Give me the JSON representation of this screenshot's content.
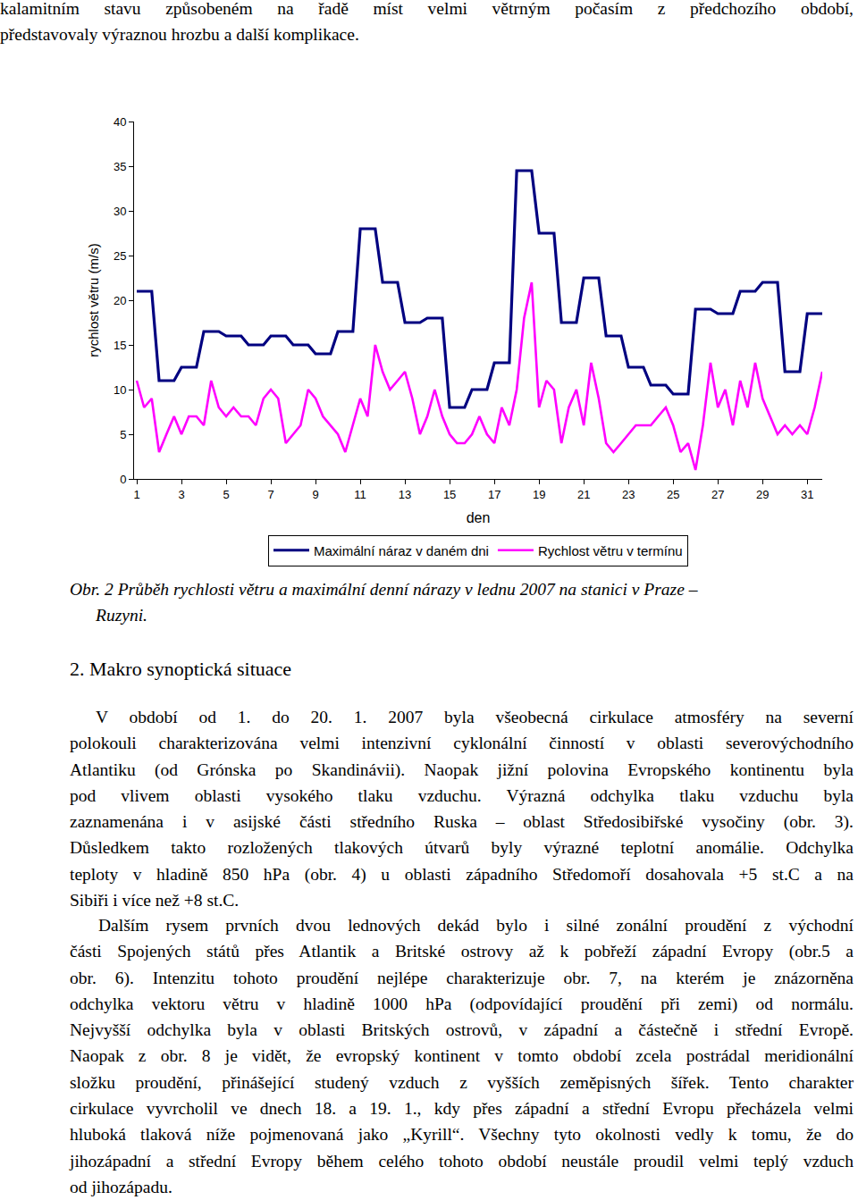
{
  "document": {
    "top_text": [
      "kalamitním stavu způsobeném na řadě míst velmi větrným počasím z předchozího období,",
      "představovaly výraznou hrozbu a další komplikace."
    ],
    "caption": [
      "Obr. 2 Průběh rychlosti větru a maximální denní nárazy v lednu 2007 na stanici v Praze –",
      "Ruzyni."
    ],
    "heading": "2. Makro synoptická situace",
    "paragraphs": [
      [
        "V období od 1. do 20. 1. 2007 byla všeobecná cirkulace atmosféry na severní",
        "polokouli charakterizována velmi intenzivní cyklonální činností v oblasti severovýchodního",
        "Atlantiku (od Grónska po Skandinávii). Naopak jižní polovina Evropského kontinentu byla",
        "pod vlivem oblasti vysokého tlaku vzduchu. Výrazná odchylka tlaku vzduchu byla",
        "zaznamenána i v asijské části středního Ruska – oblast Středosibiřské vysočiny (obr. 3).",
        "Důsledkem takto rozložených tlakových útvarů byly výrazné teplotní anomálie. Odchylka",
        "teploty v hladině 850 hPa (obr. 4) u oblasti západního Středomoří dosahovala +5 st.C a na",
        "Sibiři i více než +8 st.C."
      ],
      [
        "Dalším rysem prvních dvou lednových dekád bylo i silné zonální proudění z východní",
        "části Spojených států přes Atlantik a Britské ostrovy až k pobřeží západní Evropy (obr.5 a",
        "obr. 6). Intenzitu tohoto proudění nejlépe charakterizuje obr. 7, na kterém je znázorněna",
        "odchylka vektoru větru v hladině 1000 hPa (odpovídající proudění při zemi) od normálu.",
        "Nejvyšší odchylka byla v oblasti Britských ostrovů, v západní a částečně i střední Evropě.",
        "Naopak z obr. 8 je vidět, že evropský kontinent v tomto období zcela postrádal meridionální",
        "složku proudění, přinášející studený vzduch z vyšších zeměpisných šířek. Tento charakter",
        "cirkulace vyvrcholil ve dnech 18. a 19. 1., kdy přes západní a střední Evropu přecházela velmi",
        "hluboká tlaková níže pojmenovaná jako „Kyrill“. Všechny tyto okolnosti vedly k tomu, že do",
        "jihozápadní a střední Evropy během celého tohoto období neustále proudil velmi teplý vzduch",
        "od jihozápadu."
      ]
    ]
  },
  "chart_data": {
    "type": "line",
    "x_label": "den",
    "y_label": "rychlost větru (m/s)",
    "x": [
      1,
      1.33,
      1.67,
      2,
      2.33,
      2.67,
      3,
      3.33,
      3.67,
      4,
      4.33,
      4.67,
      5,
      5.33,
      5.67,
      6,
      6.33,
      6.67,
      7,
      7.33,
      7.67,
      8,
      8.33,
      8.67,
      9,
      9.33,
      9.67,
      10,
      10.33,
      10.67,
      11,
      11.33,
      11.67,
      12,
      12.33,
      12.67,
      13,
      13.33,
      13.67,
      14,
      14.33,
      14.67,
      15,
      15.33,
      15.67,
      16,
      16.33,
      16.67,
      17,
      17.33,
      17.67,
      18,
      18.33,
      18.67,
      19,
      19.33,
      19.67,
      20,
      20.33,
      20.67,
      21,
      21.33,
      21.67,
      22,
      22.33,
      22.67,
      23,
      23.33,
      23.67,
      24,
      24.33,
      24.67,
      25,
      25.33,
      25.67,
      26,
      26.33,
      26.67,
      27,
      27.33,
      27.67,
      28,
      28.33,
      28.67,
      29,
      29.33,
      29.67,
      30,
      30.33,
      30.67,
      31,
      31.33,
      31.67
    ],
    "series": [
      {
        "name": "Maximální náraz v daném dni",
        "color": "#000080",
        "values": [
          21,
          21,
          21,
          11,
          11,
          11,
          12.5,
          12.5,
          12.5,
          16.5,
          16.5,
          16.5,
          16,
          16,
          16,
          15,
          15,
          15,
          16,
          16,
          16,
          15,
          15,
          15,
          14,
          14,
          14,
          16.5,
          16.5,
          16.5,
          28,
          28,
          28,
          22,
          22,
          22,
          17.5,
          17.5,
          17.5,
          18,
          18,
          18,
          8,
          8,
          8,
          10,
          10,
          10,
          13,
          13,
          13,
          34.5,
          34.5,
          34.5,
          27.5,
          27.5,
          27.5,
          17.5,
          17.5,
          17.5,
          22.5,
          22.5,
          22.5,
          16,
          16,
          16,
          12.5,
          12.5,
          12.5,
          10.5,
          10.5,
          10.5,
          9.5,
          9.5,
          9.5,
          19,
          19,
          19,
          18.5,
          18.5,
          18.5,
          21,
          21,
          21,
          22,
          22,
          22,
          12,
          12,
          12,
          18.5,
          18.5,
          18.5
        ]
      },
      {
        "name": "Rychlost větru v termínu",
        "color": "#FF00FF",
        "values": [
          11,
          8,
          9,
          3,
          5,
          7,
          5,
          7,
          7,
          6,
          11,
          8,
          7,
          8,
          7,
          7,
          6,
          9,
          10,
          9,
          4,
          5,
          6,
          10,
          9,
          7,
          6,
          5,
          3,
          6,
          9,
          7,
          15,
          12,
          10,
          11,
          12,
          9,
          5,
          7,
          10,
          7,
          5,
          4,
          4,
          5,
          7,
          5,
          4,
          8,
          6,
          10,
          18,
          22,
          8,
          11,
          10,
          4,
          8,
          10,
          6,
          13,
          9,
          4,
          3,
          4,
          5,
          6,
          6,
          6,
          7,
          8,
          6,
          3,
          4,
          1,
          6,
          13,
          8,
          10,
          6,
          11,
          8,
          13,
          9,
          7,
          5,
          6,
          5,
          6,
          5,
          8,
          12
        ]
      }
    ],
    "xlim": [
      0.88,
      31.67
    ],
    "xticks": [
      1,
      3,
      5,
      7,
      9,
      11,
      13,
      15,
      17,
      19,
      21,
      23,
      25,
      27,
      29,
      31
    ],
    "ylim": [
      0,
      40
    ],
    "yticks": [
      0,
      5,
      10,
      15,
      20,
      25,
      30,
      35,
      40
    ],
    "grid": false,
    "legend": "bottom"
  }
}
